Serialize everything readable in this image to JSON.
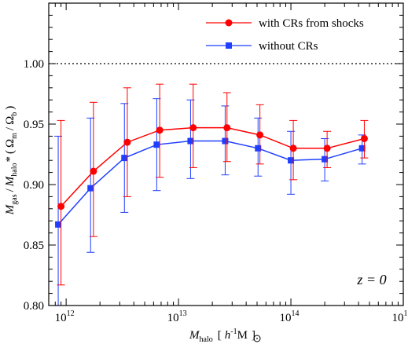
{
  "chart_data": {
    "type": "line",
    "x_scale": "log",
    "xlim": [
      700000000000,
      1000000000000000
    ],
    "ylim": [
      0.8,
      1.05
    ],
    "grid": false,
    "legend_position": "top-right",
    "reference_line": {
      "y": 1.0,
      "style": "dotted"
    },
    "annotation": "z = 0",
    "xlabel": {
      "main": "M",
      "sub": "halo",
      "unit_open": "[",
      "h": "h",
      "h_exp": "-1",
      "msun": "M",
      "unit_close": "]"
    },
    "ylabel": {
      "m1": "M",
      "s1": "gas",
      "slash1": "/",
      "m2": "M",
      "s2": "halo",
      "times": "*",
      "open": "(",
      "o1": "Ω",
      "os1": "m",
      "slash2": "/",
      "o2": "Ω",
      "os2": "b",
      "close": ")"
    },
    "x_ticks": [
      {
        "base": "10",
        "exp": "12",
        "value": 1000000000000
      },
      {
        "base": "10",
        "exp": "13",
        "value": 10000000000000
      },
      {
        "base": "10",
        "exp": "14",
        "value": 100000000000000
      },
      {
        "base": "10",
        "exp": "15",
        "value": 1000000000000000
      }
    ],
    "y_ticks": [
      "0.80",
      "0.85",
      "0.90",
      "0.95",
      "1.00"
    ],
    "series": [
      {
        "name": "with CRs from shocks",
        "color": "#ff0000",
        "marker": "circle",
        "x": [
          900000000000,
          1750000000000,
          3500000000000,
          6800000000000,
          13500000000000,
          27000000000000,
          53000000000000,
          105000000000000,
          210000000000000,
          450000000000000
        ],
        "y": [
          0.882,
          0.911,
          0.935,
          0.945,
          0.947,
          0.947,
          0.941,
          0.93,
          0.93,
          0.938
        ],
        "err_lo": [
          0.817,
          0.857,
          0.89,
          0.906,
          0.914,
          0.919,
          0.917,
          0.904,
          0.914,
          0.922
        ],
        "err_hi": [
          0.953,
          0.968,
          0.98,
          0.983,
          0.983,
          0.976,
          0.966,
          0.953,
          0.944,
          0.953
        ]
      },
      {
        "name": "without CRs",
        "color": "#1f3fff",
        "marker": "square",
        "x": [
          850000000000,
          1650000000000,
          3300000000000,
          6400000000000,
          12800000000000,
          26000000000000,
          51000000000000,
          100000000000000,
          200000000000000,
          430000000000000
        ],
        "y": [
          0.867,
          0.897,
          0.922,
          0.933,
          0.936,
          0.936,
          0.93,
          0.92,
          0.921,
          0.93
        ],
        "err_lo": [
          0.8,
          0.844,
          0.877,
          0.895,
          0.905,
          0.908,
          0.907,
          0.892,
          0.903,
          0.917
        ],
        "err_hi": [
          0.94,
          0.955,
          0.967,
          0.971,
          0.97,
          0.965,
          0.955,
          0.944,
          0.938,
          0.941
        ]
      }
    ]
  }
}
